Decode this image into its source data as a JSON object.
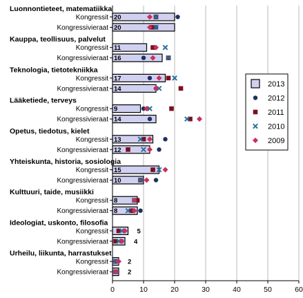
{
  "chart_data": {
    "type": "bar",
    "x_range": [
      0,
      60
    ],
    "x_ticks": [
      "0",
      "10",
      "20",
      "30",
      "40",
      "50",
      "60"
    ],
    "grid": "vertical",
    "legend_position": "right",
    "colors": {
      "2013": "#d0d0f0",
      "2012": "#1f2f5f",
      "2011": "#7a1020",
      "2010": "#2f6f9f",
      "2009": "#c8305a"
    },
    "legend": [
      {
        "name": "2013",
        "marker": "bar"
      },
      {
        "name": "2012",
        "marker": "circle"
      },
      {
        "name": "2011",
        "marker": "square"
      },
      {
        "name": "2010",
        "marker": "x"
      },
      {
        "name": "2009",
        "marker": "diamond"
      }
    ],
    "groups": [
      {
        "title": "Luonnontieteet, matematiikka",
        "rows": [
          {
            "label": "Kongressit",
            "v2013": 20,
            "v2012": 21,
            "v2011": 14,
            "v2010": 14,
            "v2009": 12,
            "bar_label": "20"
          },
          {
            "label": "Kongressivieraat",
            "v2013": 20,
            "v2012": 14,
            "v2011": 13,
            "v2010": 14,
            "v2009": 12,
            "bar_label": "20"
          }
        ]
      },
      {
        "title": "Kauppa, teollisuus, palvelut",
        "rows": [
          {
            "label": "Kongressit",
            "v2013": 11,
            "v2012": 13,
            "v2011": 13,
            "v2010": 17,
            "v2009": 14,
            "bar_label": "11"
          },
          {
            "label": "Kongressivieraat",
            "v2013": 16,
            "v2012": 10,
            "v2011": 18,
            "v2010": 18,
            "v2009": 13,
            "bar_label": "16"
          }
        ]
      },
      {
        "title": "Teknologia, tietotekniikka",
        "rows": [
          {
            "label": "Kongressit",
            "v2013": 17,
            "v2012": 12,
            "v2011": 18,
            "v2010": 20,
            "v2009": 15,
            "bar_label": "17"
          },
          {
            "label": "Kongressivieraat",
            "v2013": 14,
            "v2012": 14,
            "v2011": 22,
            "v2010": 15,
            "v2009": 14,
            "bar_label": "14"
          }
        ]
      },
      {
        "title": "Lääketiede, terveys",
        "rows": [
          {
            "label": "Kongressit",
            "v2013": 9,
            "v2012": 10,
            "v2011": 19,
            "v2010": 12,
            "v2009": 11,
            "bar_label": "9"
          },
          {
            "label": "Kongressivieraat",
            "v2013": 14,
            "v2012": 12,
            "v2011": 25,
            "v2010": 24,
            "v2009": 28,
            "bar_label": "14"
          }
        ]
      },
      {
        "title": "Opetus, tiedotus, kielet",
        "rows": [
          {
            "label": "Kongressit",
            "v2013": 13,
            "v2012": 17,
            "v2011": 10,
            "v2010": 9,
            "v2009": 12,
            "bar_label": "13"
          },
          {
            "label": "Kongressivieraat",
            "v2013": 12,
            "v2012": 15,
            "v2011": 5,
            "v2010": 10,
            "v2009": 12,
            "bar_label": "12"
          }
        ]
      },
      {
        "title": "Yhteiskunta, historia, sosiologia",
        "rows": [
          {
            "label": "Kongressit",
            "v2013": 15,
            "v2012": 13,
            "v2011": 13,
            "v2010": 15,
            "v2009": 17,
            "bar_label": "15"
          },
          {
            "label": "Kongressivieraat",
            "v2013": 10,
            "v2012": 14,
            "v2011": 9,
            "v2010": 9,
            "v2009": 11,
            "bar_label": "10"
          }
        ]
      },
      {
        "title": "Kulttuuri, taide, musiikki",
        "rows": [
          {
            "label": "Kongressit",
            "v2013": 8,
            "v2012": 8,
            "v2011": 8,
            "v2010": 7,
            "v2009": 7,
            "bar_label": "8"
          },
          {
            "label": "Kongressivieraat",
            "v2013": 8,
            "v2012": 9,
            "v2011": 6,
            "v2010": 5,
            "v2009": 7,
            "bar_label": "8"
          }
        ]
      },
      {
        "title": "Ideologiat, uskonto, filosofia",
        "rows": [
          {
            "label": "Kongressit",
            "v2013": 5,
            "v2012": 2,
            "v2011": 2,
            "v2010": 3,
            "v2009": 4,
            "bar_label": "5"
          },
          {
            "label": "Kongressivieraat",
            "v2013": 4,
            "v2012": 3,
            "v2011": 1,
            "v2010": 2,
            "v2009": 3,
            "bar_label": "4"
          }
        ]
      },
      {
        "title": "Urheilu, liikunta, harrastukset",
        "rows": [
          {
            "label": "Kongressit",
            "v2013": 2,
            "v2012": 1,
            "v2011": 1,
            "v2010": 1,
            "v2009": 2,
            "bar_label": "2"
          },
          {
            "label": "Kongressivieraat",
            "v2013": 2,
            "v2012": 1,
            "v2011": 1,
            "v2010": 1,
            "v2009": 1,
            "bar_label": "2"
          }
        ]
      }
    ]
  }
}
